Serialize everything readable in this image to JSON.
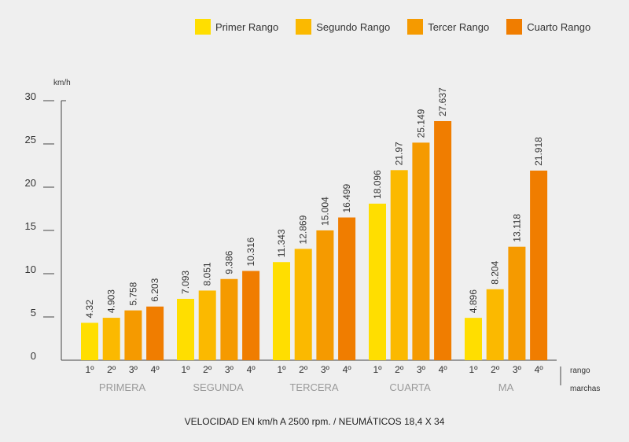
{
  "legend": [
    {
      "label": "Primer Rango",
      "color": "#FFDE00"
    },
    {
      "label": "Segundo Rango",
      "color": "#FBB900"
    },
    {
      "label": "Tercer Rango",
      "color": "#F59A00"
    },
    {
      "label": "Cuarto Rango",
      "color": "#F07D00"
    }
  ],
  "caption": "VELOCIDAD EN km/h A 2500 rpm. / NEUMÁTICOS 18,4 X 34",
  "chart_data": {
    "type": "bar",
    "ylabel": "km/h",
    "ylim": [
      0,
      30
    ],
    "yticks": [
      0,
      5,
      10,
      15,
      20,
      25,
      30
    ],
    "groups": [
      "PRIMERA",
      "SEGUNDA",
      "TERCERA",
      "CUARTA",
      "MA"
    ],
    "sub_categories": [
      "1º",
      "2º",
      "3º",
      "4º"
    ],
    "series": [
      {
        "name": "Primer Rango",
        "values": [
          4.32,
          7.093,
          11.343,
          18.096,
          4.896
        ]
      },
      {
        "name": "Segundo Rango",
        "values": [
          4.903,
          8.051,
          12.869,
          21.97,
          8.204
        ]
      },
      {
        "name": "Tercer Rango",
        "values": [
          5.758,
          9.386,
          15.004,
          25.149,
          13.118
        ]
      },
      {
        "name": "Cuarto Rango",
        "values": [
          6.203,
          10.316,
          16.499,
          27.637,
          21.918
        ]
      }
    ],
    "value_labels": [
      [
        "4.32",
        "4.903",
        "5.758",
        "6.203"
      ],
      [
        "7.093",
        "8.051",
        "9.386",
        "10.316"
      ],
      [
        "11.343",
        "12.869",
        "15.004",
        "16.499"
      ],
      [
        "18.096",
        "21.97",
        "25.149",
        "27.637"
      ],
      [
        "4.896",
        "8.204",
        "13.118",
        "21.918"
      ]
    ],
    "right_labels": {
      "top": "rango",
      "bottom": "marchas"
    }
  }
}
